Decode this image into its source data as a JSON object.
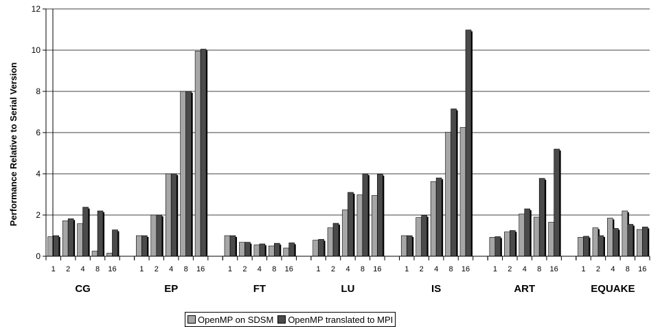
{
  "chart_data": {
    "type": "bar",
    "ylabel": "Performance Relative to Serial Version",
    "ylim": [
      0,
      12
    ],
    "yticks": [
      "0",
      "2",
      "4",
      "6",
      "8",
      "10",
      "12"
    ],
    "grid": true,
    "legend_position": "bottom",
    "groups": [
      {
        "name": "CG",
        "categories": [
          "1",
          "2",
          "4",
          "8",
          "16"
        ],
        "series": [
          {
            "name": "OpenMP on SDSM",
            "values": [
              0.95,
              1.72,
              1.58,
              0.25,
              0.15
            ]
          },
          {
            "name": "OpenMP translated to MPI",
            "values": [
              1.0,
              1.82,
              2.38,
              2.2,
              1.28
            ]
          }
        ]
      },
      {
        "name": "EP",
        "categories": [
          "1",
          "2",
          "4",
          "8",
          "16"
        ],
        "series": [
          {
            "name": "OpenMP on SDSM",
            "values": [
              1.0,
              2.0,
              4.0,
              8.0,
              9.95
            ]
          },
          {
            "name": "OpenMP translated to MPI",
            "values": [
              1.0,
              2.0,
              4.0,
              8.0,
              10.05
            ]
          }
        ]
      },
      {
        "name": "FT",
        "categories": [
          "1",
          "2",
          "4",
          "8",
          "16"
        ],
        "series": [
          {
            "name": "OpenMP on SDSM",
            "values": [
              1.0,
              0.68,
              0.55,
              0.5,
              0.4
            ]
          },
          {
            "name": "OpenMP translated to MPI",
            "values": [
              1.0,
              0.68,
              0.6,
              0.63,
              0.65
            ]
          }
        ]
      },
      {
        "name": "LU",
        "categories": [
          "1",
          "2",
          "4",
          "8",
          "16"
        ],
        "series": [
          {
            "name": "OpenMP on SDSM",
            "values": [
              0.78,
              1.38,
              2.25,
              2.98,
              2.95
            ]
          },
          {
            "name": "OpenMP translated to MPI",
            "values": [
              0.82,
              1.6,
              3.1,
              4.0,
              3.98
            ]
          }
        ]
      },
      {
        "name": "IS",
        "categories": [
          "1",
          "2",
          "4",
          "8",
          "16"
        ],
        "series": [
          {
            "name": "OpenMP on SDSM",
            "values": [
              1.0,
              1.88,
              3.62,
              6.02,
              6.25
            ]
          },
          {
            "name": "OpenMP translated to MPI",
            "values": [
              1.0,
              1.98,
              3.8,
              7.15,
              10.98
            ]
          }
        ]
      },
      {
        "name": "ART",
        "categories": [
          "1",
          "2",
          "4",
          "8",
          "16"
        ],
        "series": [
          {
            "name": "OpenMP on SDSM",
            "values": [
              0.92,
              1.18,
              2.05,
              1.9,
              1.65
            ]
          },
          {
            "name": "OpenMP translated to MPI",
            "values": [
              0.95,
              1.25,
              2.3,
              3.78,
              5.2
            ]
          }
        ]
      },
      {
        "name": "EQUAKE",
        "categories": [
          "1",
          "2",
          "4",
          "8",
          "16"
        ],
        "series": [
          {
            "name": "OpenMP on SDSM",
            "values": [
              0.92,
              1.38,
              1.85,
              2.2,
              1.3
            ]
          },
          {
            "name": "OpenMP translated to MPI",
            "values": [
              0.97,
              1.0,
              1.35,
              1.55,
              1.42
            ]
          }
        ]
      }
    ],
    "legend": [
      "OpenMP on SDSM",
      "OpenMP translated to MPI"
    ],
    "colors": {
      "OpenMP on SDSM": "#a6a6a6",
      "OpenMP translated to MPI": "#4a4a4a",
      "grid": "#000000"
    }
  }
}
